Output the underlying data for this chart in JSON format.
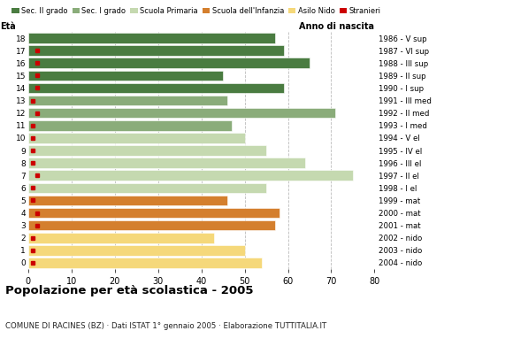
{
  "ages": [
    18,
    17,
    16,
    15,
    14,
    13,
    12,
    11,
    10,
    9,
    8,
    7,
    6,
    5,
    4,
    3,
    2,
    1,
    0
  ],
  "years": [
    "1986 - V sup",
    "1987 - VI sup",
    "1988 - III sup",
    "1989 - II sup",
    "1990 - I sup",
    "1991 - III med",
    "1992 - II med",
    "1993 - I med",
    "1994 - V el",
    "1995 - IV el",
    "1996 - III el",
    "1997 - II el",
    "1998 - I el",
    "1999 - mat",
    "2000 - mat",
    "2001 - mat",
    "2002 - nido",
    "2003 - nido",
    "2004 - nido"
  ],
  "values": [
    57,
    59,
    65,
    45,
    59,
    46,
    71,
    47,
    50,
    55,
    64,
    75,
    55,
    46,
    58,
    57,
    43,
    50,
    54
  ],
  "stranieri": [
    0,
    2,
    2,
    2,
    2,
    1,
    2,
    1,
    1,
    1,
    1,
    2,
    1,
    1,
    2,
    2,
    1,
    1,
    1
  ],
  "bar_colors": [
    "#4a7c41",
    "#4a7c41",
    "#4a7c41",
    "#4a7c41",
    "#4a7c41",
    "#8aac7a",
    "#8aac7a",
    "#8aac7a",
    "#c5d9b0",
    "#c5d9b0",
    "#c5d9b0",
    "#c5d9b0",
    "#c5d9b0",
    "#d47f2e",
    "#d47f2e",
    "#d47f2e",
    "#f5d87a",
    "#f5d87a",
    "#f5d87a"
  ],
  "legend_labels": [
    "Sec. II grado",
    "Sec. I grado",
    "Scuola Primaria",
    "Scuola dell'Infanzia",
    "Asilo Nido",
    "Stranieri"
  ],
  "legend_colors": [
    "#4a7c41",
    "#8aac7a",
    "#c5d9b0",
    "#d47f2e",
    "#f5d87a",
    "#cc0000"
  ],
  "stranieri_color": "#cc0000",
  "title": "Popolazione per età scolastica - 2005",
  "subtitle": "COMUNE DI RACINES (BZ) · Dati ISTAT 1° gennaio 2005 · Elaborazione TUTTITALIA.IT",
  "ylabel_eta": "Età",
  "ylabel_anno": "Anno di nascita",
  "xlim": [
    0,
    80
  ],
  "xticks": [
    0,
    10,
    20,
    30,
    40,
    50,
    60,
    70,
    80
  ],
  "background_color": "#ffffff",
  "grid_color": "#bbbbbb"
}
